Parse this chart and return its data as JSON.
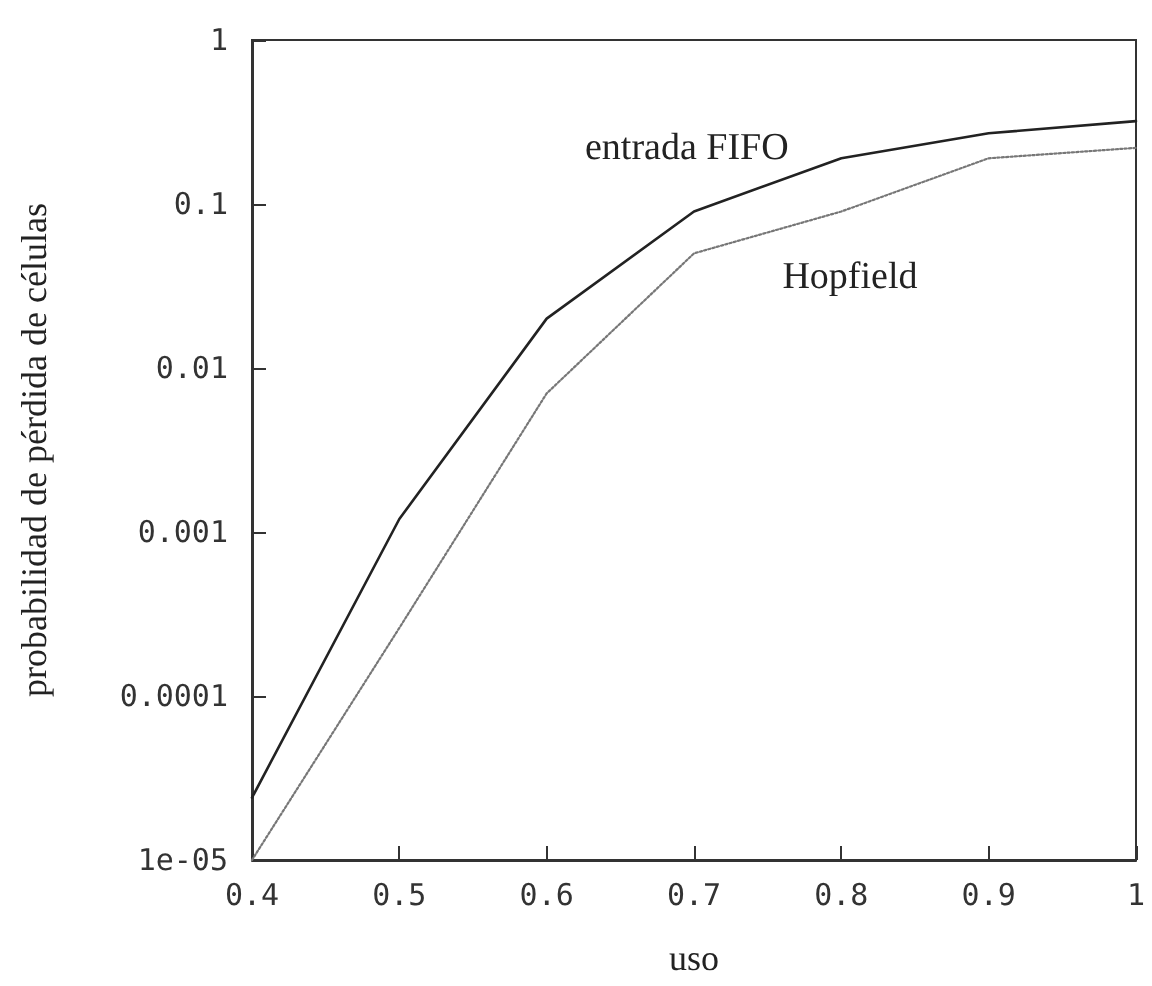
{
  "chart_data": {
    "type": "line",
    "xlabel": "uso",
    "ylabel": "probabilidad de pérdida de células",
    "x": [
      0.4,
      0.5,
      0.6,
      0.7,
      0.8,
      0.9,
      1.0
    ],
    "series": [
      {
        "name": "entrada FIFO",
        "color": "#222222",
        "line_style": "solid",
        "values": [
          2.4e-05,
          0.0012,
          0.02,
          0.09,
          0.19,
          0.27,
          0.32
        ]
      },
      {
        "name": "Hopfield",
        "color": "#777777",
        "line_style": "dotted",
        "values": [
          1e-05,
          0.00026,
          0.007,
          0.05,
          0.09,
          0.19,
          0.22
        ]
      }
    ],
    "log": "y",
    "xlim": [
      0.4,
      1
    ],
    "xticks": [
      0.4,
      0.5,
      0.6,
      0.7,
      0.8,
      0.9,
      1
    ],
    "ylim": [
      1e-05,
      1
    ],
    "yticks": [
      1,
      0.1,
      0.01,
      0.001,
      0.0001,
      {
        "value": 1e-05,
        "label": "1e-05"
      }
    ],
    "grid": false,
    "legend": false,
    "marker": "none"
  }
}
